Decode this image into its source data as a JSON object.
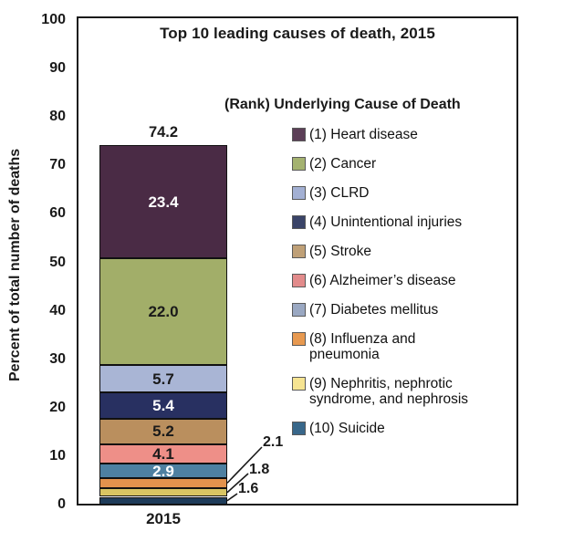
{
  "figure": {
    "title": "Top 10 leading causes of death, 2015",
    "x_category": "2015"
  },
  "y_axis": {
    "label": "Percent of total number of deaths",
    "ticks": [
      "0",
      "10",
      "20",
      "30",
      "40",
      "50",
      "60",
      "70",
      "80",
      "90",
      "100"
    ]
  },
  "legend": {
    "title": "(Rank) Underlying Cause of Death",
    "items": [
      {
        "rank": 1,
        "label": "(1) Heart disease",
        "swatch_color": "#5c3f57"
      },
      {
        "rank": 2,
        "label": "(2) Cancer",
        "swatch_color": "#a4b270"
      },
      {
        "rank": 3,
        "label": "(3) CLRD",
        "swatch_color": "#a3b0d3"
      },
      {
        "rank": 4,
        "label": "(4) Unintentional injuries",
        "swatch_color": "#3a4468"
      },
      {
        "rank": 5,
        "label": "(5) Stroke",
        "swatch_color": "#bfa077"
      },
      {
        "rank": 6,
        "label": "(6) Alzheimer’s disease",
        "swatch_color": "#e28b8b"
      },
      {
        "rank": 7,
        "label": "(7) Diabetes mellitus",
        "swatch_color": "#9aa8c2"
      },
      {
        "rank": 8,
        "label": "(8) Influenza and\npneumonia",
        "swatch_color": "#e79950"
      },
      {
        "rank": 9,
        "label": "(9) Nephritis, nephrotic\nsyndrome, and nephrosis",
        "swatch_color": "#f6e492"
      },
      {
        "rank": 10,
        "label": "(10) Suicide",
        "swatch_color": "#38678a"
      }
    ]
  },
  "chart_data": {
    "type": "bar",
    "stacked": true,
    "title": "Top 10 leading causes of death, 2015",
    "ylabel": "Percent of total number of deaths",
    "ylim": [
      0,
      100
    ],
    "grid": false,
    "legend_position": "right",
    "categories": [
      "2015"
    ],
    "total": 74.2,
    "total_label": "74.2",
    "series": [
      {
        "rank": 1,
        "name": "Heart disease",
        "value": 23.4,
        "value_label": "23.4",
        "bar_color": "#4a2b45",
        "label_style": "inside-white"
      },
      {
        "rank": 2,
        "name": "Cancer",
        "value": 22.0,
        "value_label": "22.0",
        "bar_color": "#a2ae69",
        "label_style": "inside-black"
      },
      {
        "rank": 3,
        "name": "CLRD",
        "value": 5.7,
        "value_label": "5.7",
        "bar_color": "#a9b5d5",
        "label_style": "inside-black"
      },
      {
        "rank": 4,
        "name": "Unintentional injuries",
        "value": 5.4,
        "value_label": "5.4",
        "bar_color": "#283061",
        "label_style": "inside-white"
      },
      {
        "rank": 5,
        "name": "Stroke",
        "value": 5.2,
        "value_label": "5.2",
        "bar_color": "#ba8f5e",
        "label_style": "inside-black"
      },
      {
        "rank": 6,
        "name": "Alzheimer’s disease",
        "value": 4.1,
        "value_label": "4.1",
        "bar_color": "#ee8f88",
        "label_style": "inside-black"
      },
      {
        "rank": 7,
        "name": "Diabetes mellitus",
        "value": 2.9,
        "value_label": "2.9",
        "bar_color": "#4e80a1",
        "label_style": "inside-white"
      },
      {
        "rank": 8,
        "name": "Influenza and pneumonia",
        "value": 2.1,
        "value_label": "2.1",
        "bar_color": "#e2924d",
        "label_style": "callout"
      },
      {
        "rank": 9,
        "name": "Nephritis, nephrotic syndrome, and nephrosis",
        "value": 1.8,
        "value_label": "1.8",
        "bar_color": "#d9c563",
        "label_style": "callout"
      },
      {
        "rank": 10,
        "name": "Suicide",
        "value": 1.6,
        "value_label": "1.6",
        "bar_color": "#1e3c5a",
        "label_style": "callout"
      }
    ]
  }
}
